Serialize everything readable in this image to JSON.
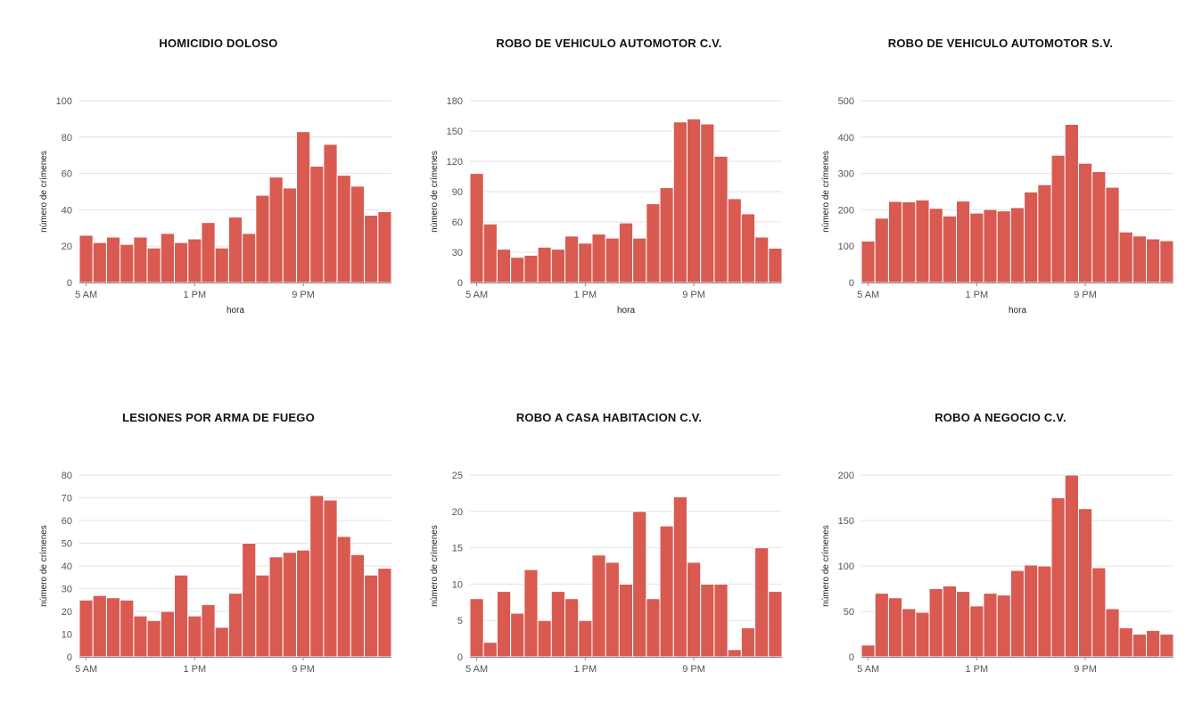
{
  "page": {
    "bar_color": "#d95a50",
    "grid_color": "#e0e2ef"
  },
  "chart_data": [
    {
      "type": "bar",
      "title": "HOMICIDIO DOLOSO",
      "xlabel": "hora",
      "ylabel": "número de crímenes",
      "categories": [
        "5 AM",
        "6 AM",
        "7 AM",
        "8 AM",
        "9 AM",
        "10 AM",
        "11 AM",
        "12 PM",
        "1 PM",
        "2 PM",
        "3 PM",
        "4 PM",
        "5 PM",
        "6 PM",
        "7 PM",
        "8 PM",
        "9 PM",
        "10 PM",
        "11 PM",
        "12 AM",
        "1 AM",
        "2 AM",
        "3 AM"
      ],
      "x_tick_labels": [
        "5 AM",
        "1 PM",
        "9 PM"
      ],
      "x_tick_indices": [
        0,
        8,
        16
      ],
      "values": [
        26,
        22,
        25,
        21,
        25,
        19,
        27,
        22,
        24,
        33,
        19,
        36,
        27,
        48,
        58,
        52,
        83,
        64,
        76,
        59,
        53,
        37,
        39
      ],
      "ylim": [
        0,
        100
      ],
      "y_ticks": [
        0,
        20,
        40,
        60,
        80,
        100
      ],
      "grid": true
    },
    {
      "type": "bar",
      "title": "ROBO DE VEHICULO AUTOMOTOR C.V.",
      "xlabel": "hora",
      "ylabel": "número de crímenes",
      "categories": [
        "5 AM",
        "6 AM",
        "7 AM",
        "8 AM",
        "9 AM",
        "10 AM",
        "11 AM",
        "12 PM",
        "1 PM",
        "2 PM",
        "3 PM",
        "4 PM",
        "5 PM",
        "6 PM",
        "7 PM",
        "8 PM",
        "9 PM",
        "10 PM",
        "11 PM",
        "12 AM",
        "1 AM",
        "2 AM",
        "3 AM"
      ],
      "x_tick_labels": [
        "5 AM",
        "1 PM",
        "9 PM"
      ],
      "x_tick_indices": [
        0,
        8,
        16
      ],
      "values": [
        108,
        58,
        33,
        25,
        27,
        35,
        33,
        46,
        39,
        48,
        44,
        59,
        44,
        78,
        94,
        159,
        162,
        157,
        125,
        83,
        68,
        45,
        34
      ],
      "ylim": [
        0,
        180
      ],
      "y_ticks": [
        0,
        30,
        60,
        90,
        120,
        150,
        180
      ],
      "grid": true
    },
    {
      "type": "bar",
      "title": "ROBO DE VEHICULO AUTOMOTOR S.V.",
      "xlabel": "hora",
      "ylabel": "número de crímenes",
      "categories": [
        "5 AM",
        "6 AM",
        "7 AM",
        "8 AM",
        "9 AM",
        "10 AM",
        "11 AM",
        "12 PM",
        "1 PM",
        "2 PM",
        "3 PM",
        "4 PM",
        "5 PM",
        "6 PM",
        "7 PM",
        "8 PM",
        "9 PM",
        "10 PM",
        "11 PM",
        "12 AM",
        "1 AM",
        "2 AM",
        "3 AM"
      ],
      "x_tick_labels": [
        "5 AM",
        "1 PM",
        "9 PM"
      ],
      "x_tick_indices": [
        0,
        8,
        16
      ],
      "values": [
        114,
        177,
        223,
        222,
        227,
        204,
        183,
        224,
        191,
        201,
        197,
        206,
        249,
        269,
        350,
        435,
        328,
        305,
        262,
        139,
        128,
        120,
        115
      ],
      "ylim": [
        0,
        500
      ],
      "y_ticks": [
        0,
        100,
        200,
        300,
        400,
        500
      ],
      "grid": true
    },
    {
      "type": "bar",
      "title": "LESIONES POR ARMA DE FUEGO",
      "xlabel": "hora",
      "ylabel": "número de crímenes",
      "categories": [
        "5 AM",
        "6 AM",
        "7 AM",
        "8 AM",
        "9 AM",
        "10 AM",
        "11 AM",
        "12 PM",
        "1 PM",
        "2 PM",
        "3 PM",
        "4 PM",
        "5 PM",
        "6 PM",
        "7 PM",
        "8 PM",
        "9 PM",
        "10 PM",
        "11 PM",
        "12 AM",
        "1 AM",
        "2 AM",
        "3 AM"
      ],
      "x_tick_labels": [
        "5 AM",
        "1 PM",
        "9 PM"
      ],
      "x_tick_indices": [
        0,
        8,
        16
      ],
      "values": [
        25,
        27,
        26,
        25,
        18,
        16,
        20,
        36,
        18,
        23,
        13,
        28,
        50,
        36,
        44,
        46,
        47,
        71,
        69,
        53,
        45,
        36,
        39
      ],
      "ylim": [
        0,
        80
      ],
      "y_ticks": [
        0,
        10,
        20,
        30,
        40,
        50,
        60,
        70,
        80
      ],
      "grid": true
    },
    {
      "type": "bar",
      "title": "ROBO A CASA HABITACION C.V.",
      "xlabel": "hora",
      "ylabel": "número de crímenes",
      "categories": [
        "5 AM",
        "6 AM",
        "7 AM",
        "8 AM",
        "9 AM",
        "10 AM",
        "11 AM",
        "12 PM",
        "1 PM",
        "2 PM",
        "3 PM",
        "4 PM",
        "5 PM",
        "6 PM",
        "7 PM",
        "8 PM",
        "9 PM",
        "10 PM",
        "11 PM",
        "12 AM",
        "1 AM",
        "2 AM",
        "3 AM"
      ],
      "x_tick_labels": [
        "5 AM",
        "1 PM",
        "9 PM"
      ],
      "x_tick_indices": [
        0,
        8,
        16
      ],
      "values": [
        8,
        2,
        9,
        6,
        12,
        5,
        9,
        8,
        5,
        14,
        13,
        10,
        20,
        8,
        18,
        22,
        13,
        10,
        10,
        1,
        4,
        15,
        9
      ],
      "ylim": [
        0,
        25
      ],
      "y_ticks": [
        0,
        5,
        10,
        15,
        20,
        25
      ],
      "grid": true
    },
    {
      "type": "bar",
      "title": "ROBO A NEGOCIO C.V.",
      "xlabel": "hora",
      "ylabel": "número de crímenes",
      "categories": [
        "5 AM",
        "6 AM",
        "7 AM",
        "8 AM",
        "9 AM",
        "10 AM",
        "11 AM",
        "12 PM",
        "1 PM",
        "2 PM",
        "3 PM",
        "4 PM",
        "5 PM",
        "6 PM",
        "7 PM",
        "8 PM",
        "9 PM",
        "10 PM",
        "11 PM",
        "12 AM",
        "1 AM",
        "2 AM",
        "3 AM"
      ],
      "x_tick_labels": [
        "5 AM",
        "1 PM",
        "9 PM"
      ],
      "x_tick_indices": [
        0,
        8,
        16
      ],
      "values": [
        13,
        70,
        65,
        53,
        49,
        75,
        78,
        72,
        56,
        70,
        68,
        95,
        101,
        100,
        175,
        200,
        163,
        98,
        53,
        32,
        25,
        29,
        25
      ],
      "ylim": [
        0,
        200
      ],
      "y_ticks": [
        0,
        50,
        100,
        150,
        200
      ],
      "grid": true
    }
  ]
}
